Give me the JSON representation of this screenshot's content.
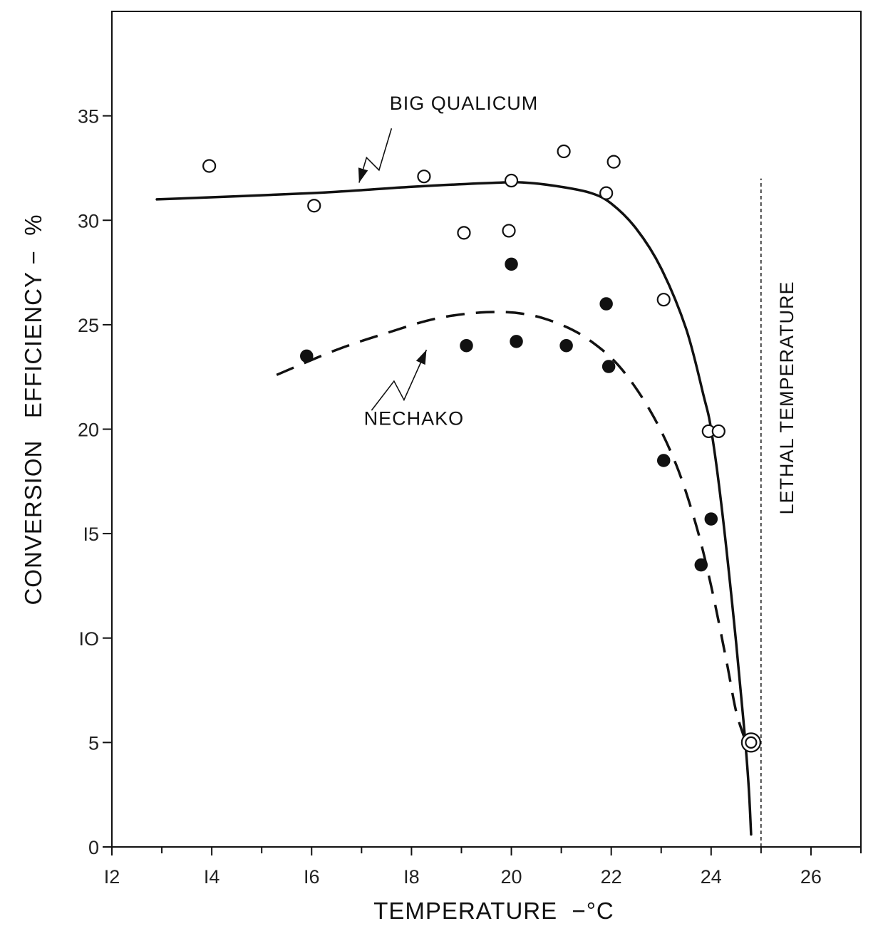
{
  "chart_data": {
    "type": "scatter",
    "title": "",
    "xlabel": "TEMPERATURE  −°C",
    "ylabel": "CONVERSION   EFFICIENCY −  %",
    "xlim": [
      12,
      27
    ],
    "ylim": [
      0,
      40
    ],
    "x_ticks": [
      12,
      14,
      16,
      18,
      20,
      22,
      24,
      26
    ],
    "x_tick_labels": [
      "I2",
      "I4",
      "I6",
      "I8",
      "20",
      "22",
      "24",
      "26"
    ],
    "y_ticks": [
      0,
      5,
      10,
      15,
      20,
      25,
      30,
      35
    ],
    "y_tick_labels": [
      "0",
      "5",
      "IO",
      "I5",
      "20",
      "25",
      "30",
      "35"
    ],
    "grid": false,
    "legend": "none",
    "series": [
      {
        "name": "BIG   QUALICUM",
        "marker": "open-circle",
        "points": [
          {
            "x": 13.95,
            "y": 32.6
          },
          {
            "x": 16.05,
            "y": 30.7
          },
          {
            "x": 18.25,
            "y": 32.1
          },
          {
            "x": 19.05,
            "y": 29.4
          },
          {
            "x": 19.95,
            "y": 29.5
          },
          {
            "x": 20.0,
            "y": 31.9
          },
          {
            "x": 21.05,
            "y": 33.3
          },
          {
            "x": 21.9,
            "y": 31.3
          },
          {
            "x": 22.05,
            "y": 32.8
          },
          {
            "x": 23.05,
            "y": 26.2
          },
          {
            "x": 23.95,
            "y": 19.9
          },
          {
            "x": 24.15,
            "y": 19.9
          },
          {
            "x": 24.8,
            "y": 5.0
          }
        ],
        "curve": [
          {
            "x": 12.9,
            "y": 31.0
          },
          {
            "x": 16.0,
            "y": 31.3
          },
          {
            "x": 18.0,
            "y": 31.6
          },
          {
            "x": 19.7,
            "y": 31.8
          },
          {
            "x": 20.3,
            "y": 31.8
          },
          {
            "x": 21.0,
            "y": 31.6
          },
          {
            "x": 21.6,
            "y": 31.3
          },
          {
            "x": 22.0,
            "y": 30.8
          },
          {
            "x": 22.5,
            "y": 29.6
          },
          {
            "x": 23.0,
            "y": 27.7
          },
          {
            "x": 23.5,
            "y": 24.8
          },
          {
            "x": 23.85,
            "y": 21.6
          },
          {
            "x": 24.0,
            "y": 20.0
          },
          {
            "x": 24.2,
            "y": 16.5
          },
          {
            "x": 24.45,
            "y": 11.0
          },
          {
            "x": 24.65,
            "y": 6.0
          },
          {
            "x": 24.75,
            "y": 3.0
          },
          {
            "x": 24.8,
            "y": 0.6
          }
        ]
      },
      {
        "name": "NECHAKO",
        "marker": "filled-circle",
        "points": [
          {
            "x": 15.9,
            "y": 23.5
          },
          {
            "x": 19.1,
            "y": 24.0
          },
          {
            "x": 20.0,
            "y": 27.9
          },
          {
            "x": 20.1,
            "y": 24.2
          },
          {
            "x": 21.1,
            "y": 24.0
          },
          {
            "x": 21.9,
            "y": 26.0
          },
          {
            "x": 21.95,
            "y": 23.0
          },
          {
            "x": 23.05,
            "y": 18.5
          },
          {
            "x": 23.8,
            "y": 13.5
          },
          {
            "x": 24.0,
            "y": 15.7
          }
        ],
        "curve": [
          {
            "x": 15.3,
            "y": 22.6
          },
          {
            "x": 16.5,
            "y": 23.8
          },
          {
            "x": 17.5,
            "y": 24.6
          },
          {
            "x": 18.5,
            "y": 25.3
          },
          {
            "x": 19.5,
            "y": 25.6
          },
          {
            "x": 20.3,
            "y": 25.5
          },
          {
            "x": 21.0,
            "y": 25.0
          },
          {
            "x": 21.6,
            "y": 24.2
          },
          {
            "x": 22.2,
            "y": 22.9
          },
          {
            "x": 22.8,
            "y": 20.8
          },
          {
            "x": 23.3,
            "y": 18.3
          },
          {
            "x": 23.7,
            "y": 15.4
          },
          {
            "x": 24.0,
            "y": 12.5
          },
          {
            "x": 24.3,
            "y": 9.0
          },
          {
            "x": 24.5,
            "y": 6.5
          },
          {
            "x": 24.7,
            "y": 5.0
          }
        ]
      }
    ],
    "reference_line": {
      "x": 25.0,
      "y_range": [
        0,
        32
      ],
      "style": "dotted",
      "label": "LETHAL   TEMPERATURE"
    },
    "annotations": [
      {
        "text": "BIG   QUALICUM",
        "x": 19.05,
        "y": 35.3
      },
      {
        "text": "NECHAKO",
        "x": 18.05,
        "y": 20.2
      }
    ]
  }
}
